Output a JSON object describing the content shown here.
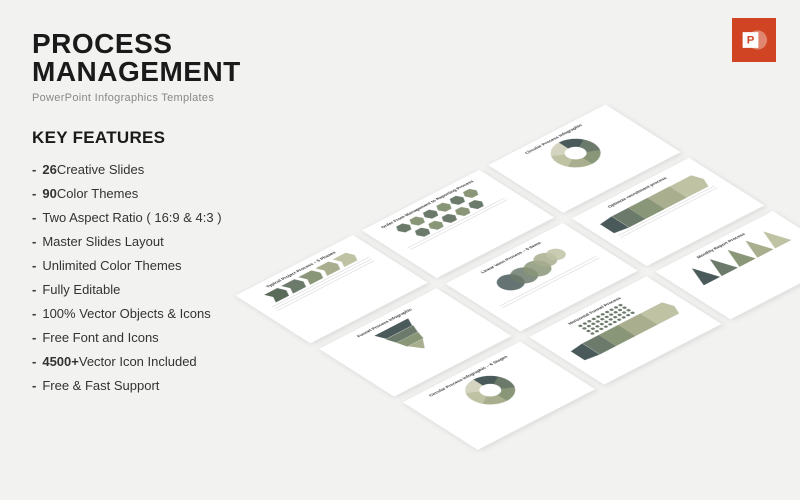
{
  "header": {
    "title": "PROCESS MANAGEMENT",
    "subtitle": "PowerPoint Infographics Templates",
    "badge_label": "P"
  },
  "key_features": {
    "heading": "KEY FEATURES",
    "items": [
      {
        "bold": "26",
        "rest": " Creative Slides"
      },
      {
        "bold": "90",
        "rest": " Color Themes"
      },
      {
        "bold": "",
        "rest": "Two Aspect Ratio ( 16:9 & 4:3 )"
      },
      {
        "bold": "",
        "rest": "Master Slides Layout"
      },
      {
        "bold": "",
        "rest": "Unlimited Color Themes"
      },
      {
        "bold": "",
        "rest": "Fully Editable"
      },
      {
        "bold": "",
        "rest": "100% Vector Objects & Icons"
      },
      {
        "bold": "",
        "rest": "Free Font and Icons"
      },
      {
        "bold": "4500+",
        "rest": " Vector Icon Included"
      },
      {
        "bold": "",
        "rest": "Free & Fast Support"
      }
    ]
  },
  "slides": {
    "s1": {
      "title": "Typical Project Process – 5 Phases"
    },
    "s2": {
      "title": "Order From Management to Reporting Process"
    },
    "s3": {
      "title": "Circular Process Infographic"
    },
    "s4": {
      "title": "Funnel Process Infographic"
    },
    "s5": {
      "title": "Linear Venn Process – 5 Items"
    },
    "s6": {
      "title": "Optimize recruitment process"
    },
    "s7": {
      "title": "Circular Process Infographic – 6 Stages"
    },
    "s8": {
      "title": "Horizontal Funnel Process"
    },
    "s9": {
      "title": "Monthly Report Process"
    }
  },
  "palette": {
    "bg": "#f2f2f1",
    "text": "#1a1a1a",
    "muted": "#888",
    "badge": "#d04423",
    "series": [
      "#4a5a5a",
      "#6b7a6b",
      "#8a9678",
      "#a8ae8e",
      "#c0c2a4",
      "#d4d4c0"
    ]
  }
}
